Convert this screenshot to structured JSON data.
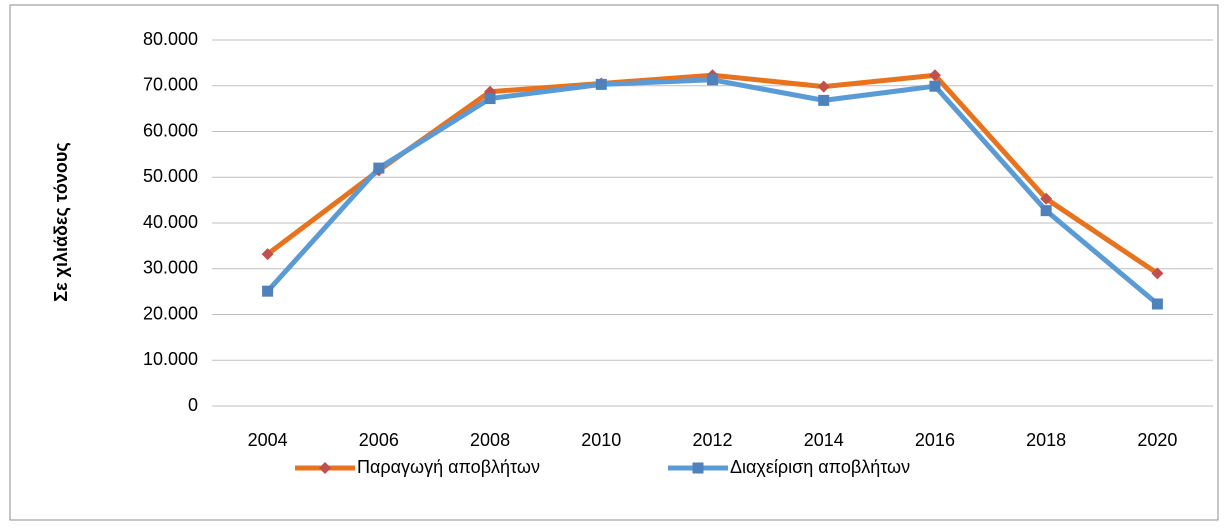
{
  "chart_data": {
    "type": "line",
    "y_axis_label": "Σε χιλιάδες τόνους",
    "categories": [
      "2004",
      "2006",
      "2008",
      "2010",
      "2012",
      "2014",
      "2016",
      "2018",
      "2020"
    ],
    "series": [
      {
        "name": "Παραγωγή αποβλήτων",
        "color": "#e8731e",
        "marker": "diamond",
        "marker_color": "#c0504d",
        "values": [
          33200,
          51500,
          68700,
          70500,
          72300,
          69800,
          72300,
          45300,
          29000
        ]
      },
      {
        "name": "Διαχείριση αποβλήτων",
        "color": "#5b9bd5",
        "marker": "square",
        "marker_color": "#4f81bd",
        "values": [
          25100,
          52000,
          67200,
          70300,
          71300,
          66800,
          69900,
          42700,
          22300
        ]
      }
    ],
    "ylim": [
      0,
      80000
    ],
    "yticks": [
      0,
      {
        "value": 10000,
        "label": "10.000"
      },
      {
        "value": 20000,
        "label": "20.000"
      },
      {
        "value": 30000,
        "label": "30.000"
      },
      {
        "value": 40000,
        "label": "40.000"
      },
      {
        "value": 50000,
        "label": "50.000"
      },
      {
        "value": 60000,
        "label": "60.000"
      },
      {
        "value": 70000,
        "label": "70.000"
      },
      {
        "value": 80000,
        "label": "80.000"
      }
    ],
    "grid": true,
    "legend": "bottom"
  }
}
